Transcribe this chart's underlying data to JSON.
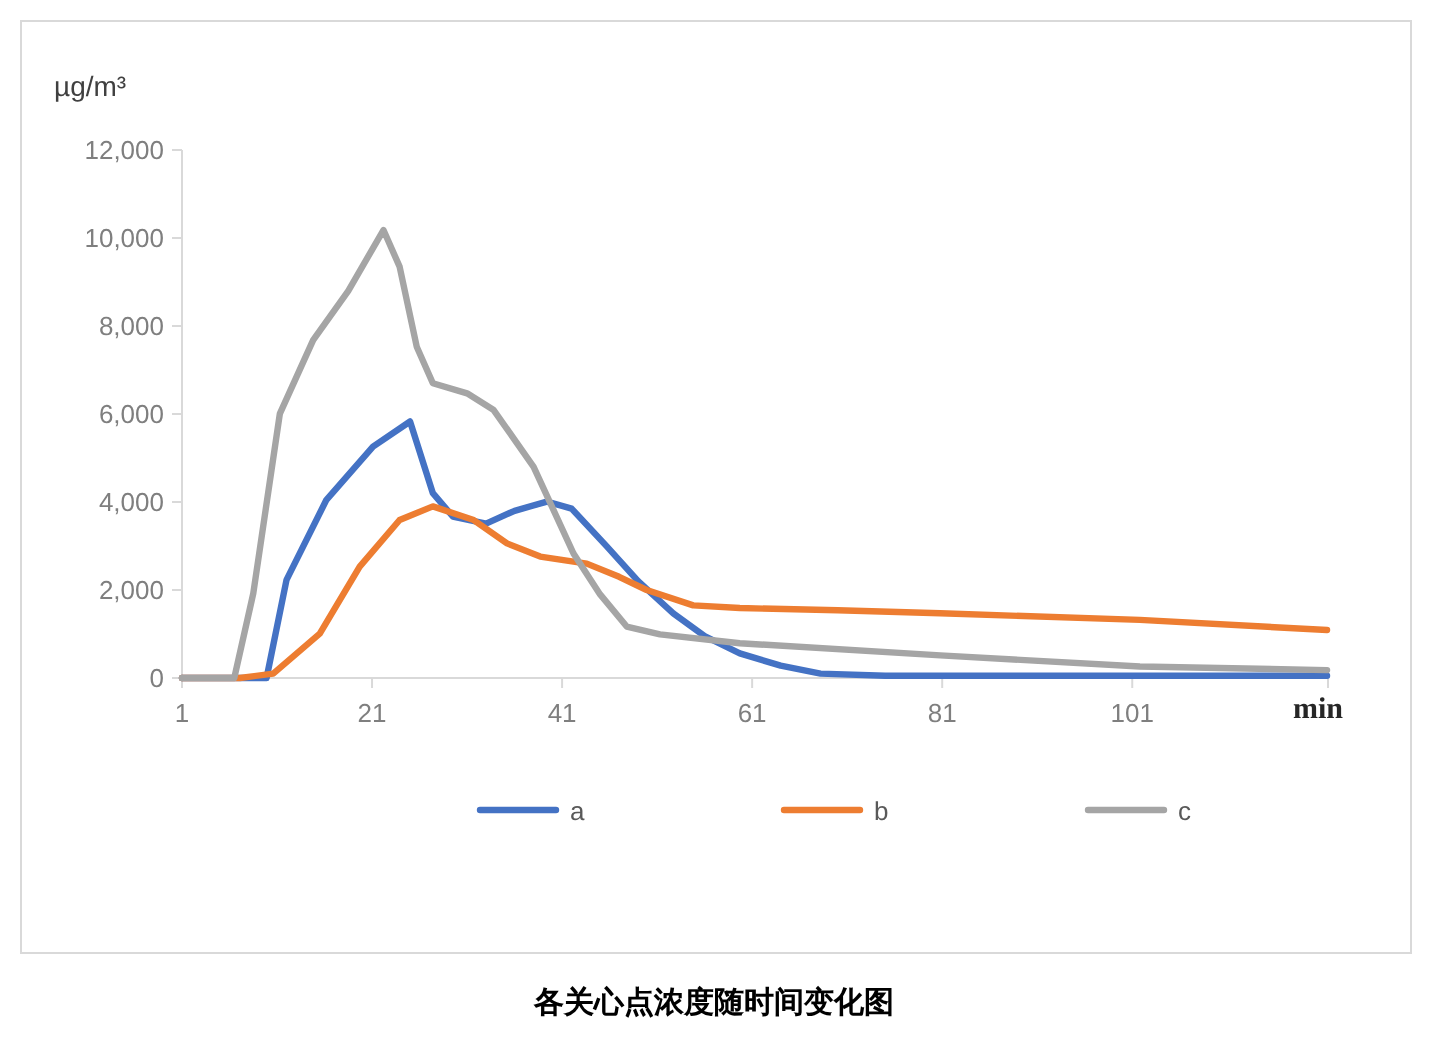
{
  "chart_data": {
    "type": "line",
    "title": "各关心点浓度随时间变化图",
    "ylabel": "µg/m³",
    "xlabel": "min",
    "xlim": [
      1,
      121.6
    ],
    "xticks": [
      1,
      21,
      41,
      61,
      81,
      101
    ],
    "ylim": [
      0,
      12000
    ],
    "yticks": [
      {
        "value": 0,
        "label": "0"
      },
      {
        "value": 2000,
        "label": "2,000"
      },
      {
        "value": 4000,
        "label": "4,000"
      },
      {
        "value": 6000,
        "label": "6,000"
      },
      {
        "value": 8000,
        "label": "8,000"
      },
      {
        "value": 10000,
        "label": "10,000"
      },
      {
        "value": 12000,
        "label": "12,000"
      }
    ],
    "grid": false,
    "legend": "bottom",
    "series": [
      {
        "name": "a",
        "color": "#4472c4",
        "x": [
          1,
          9.9,
          12,
          16.2,
          21.1,
          25,
          27.4,
          29.5,
          33,
          36,
          39.4,
          42,
          45.7,
          49,
          52.7,
          56,
          59.7,
          64,
          68.2,
          75,
          90,
          110,
          121.5
        ],
        "values": [
          0,
          0,
          2230,
          4050,
          5260,
          5830,
          4200,
          3670,
          3510,
          3800,
          4010,
          3850,
          2990,
          2200,
          1470,
          950,
          560,
          280,
          100,
          50,
          50,
          50,
          50
        ]
      },
      {
        "name": "b",
        "color": "#ed7d31",
        "x": [
          1,
          7.1,
          10.6,
          15.5,
          19.7,
          23.9,
          27.4,
          31.7,
          35.2,
          38.7,
          43.6,
          47,
          49.9,
          54.8,
          59.7,
          70,
          80.8,
          101.8,
          121.5
        ],
        "values": [
          0,
          0,
          100,
          1010,
          2530,
          3590,
          3900,
          3590,
          3060,
          2760,
          2600,
          2300,
          2000,
          1650,
          1590,
          1540,
          1470,
          1320,
          1090
        ]
      },
      {
        "name": "c",
        "color": "#a5a5a5",
        "x": [
          1,
          6.5,
          8.5,
          11.3,
          14.8,
          18.5,
          22.2,
          23.9,
          25.7,
          27.4,
          31,
          33.8,
          38,
          42.2,
          45,
          47.8,
          51.3,
          59.7,
          80.8,
          101.8,
          121.5
        ],
        "values": [
          0,
          0,
          1920,
          6010,
          7680,
          8800,
          10180,
          9350,
          7530,
          6700,
          6470,
          6090,
          4800,
          2830,
          1900,
          1170,
          990,
          790,
          515,
          260,
          180
        ]
      }
    ]
  }
}
